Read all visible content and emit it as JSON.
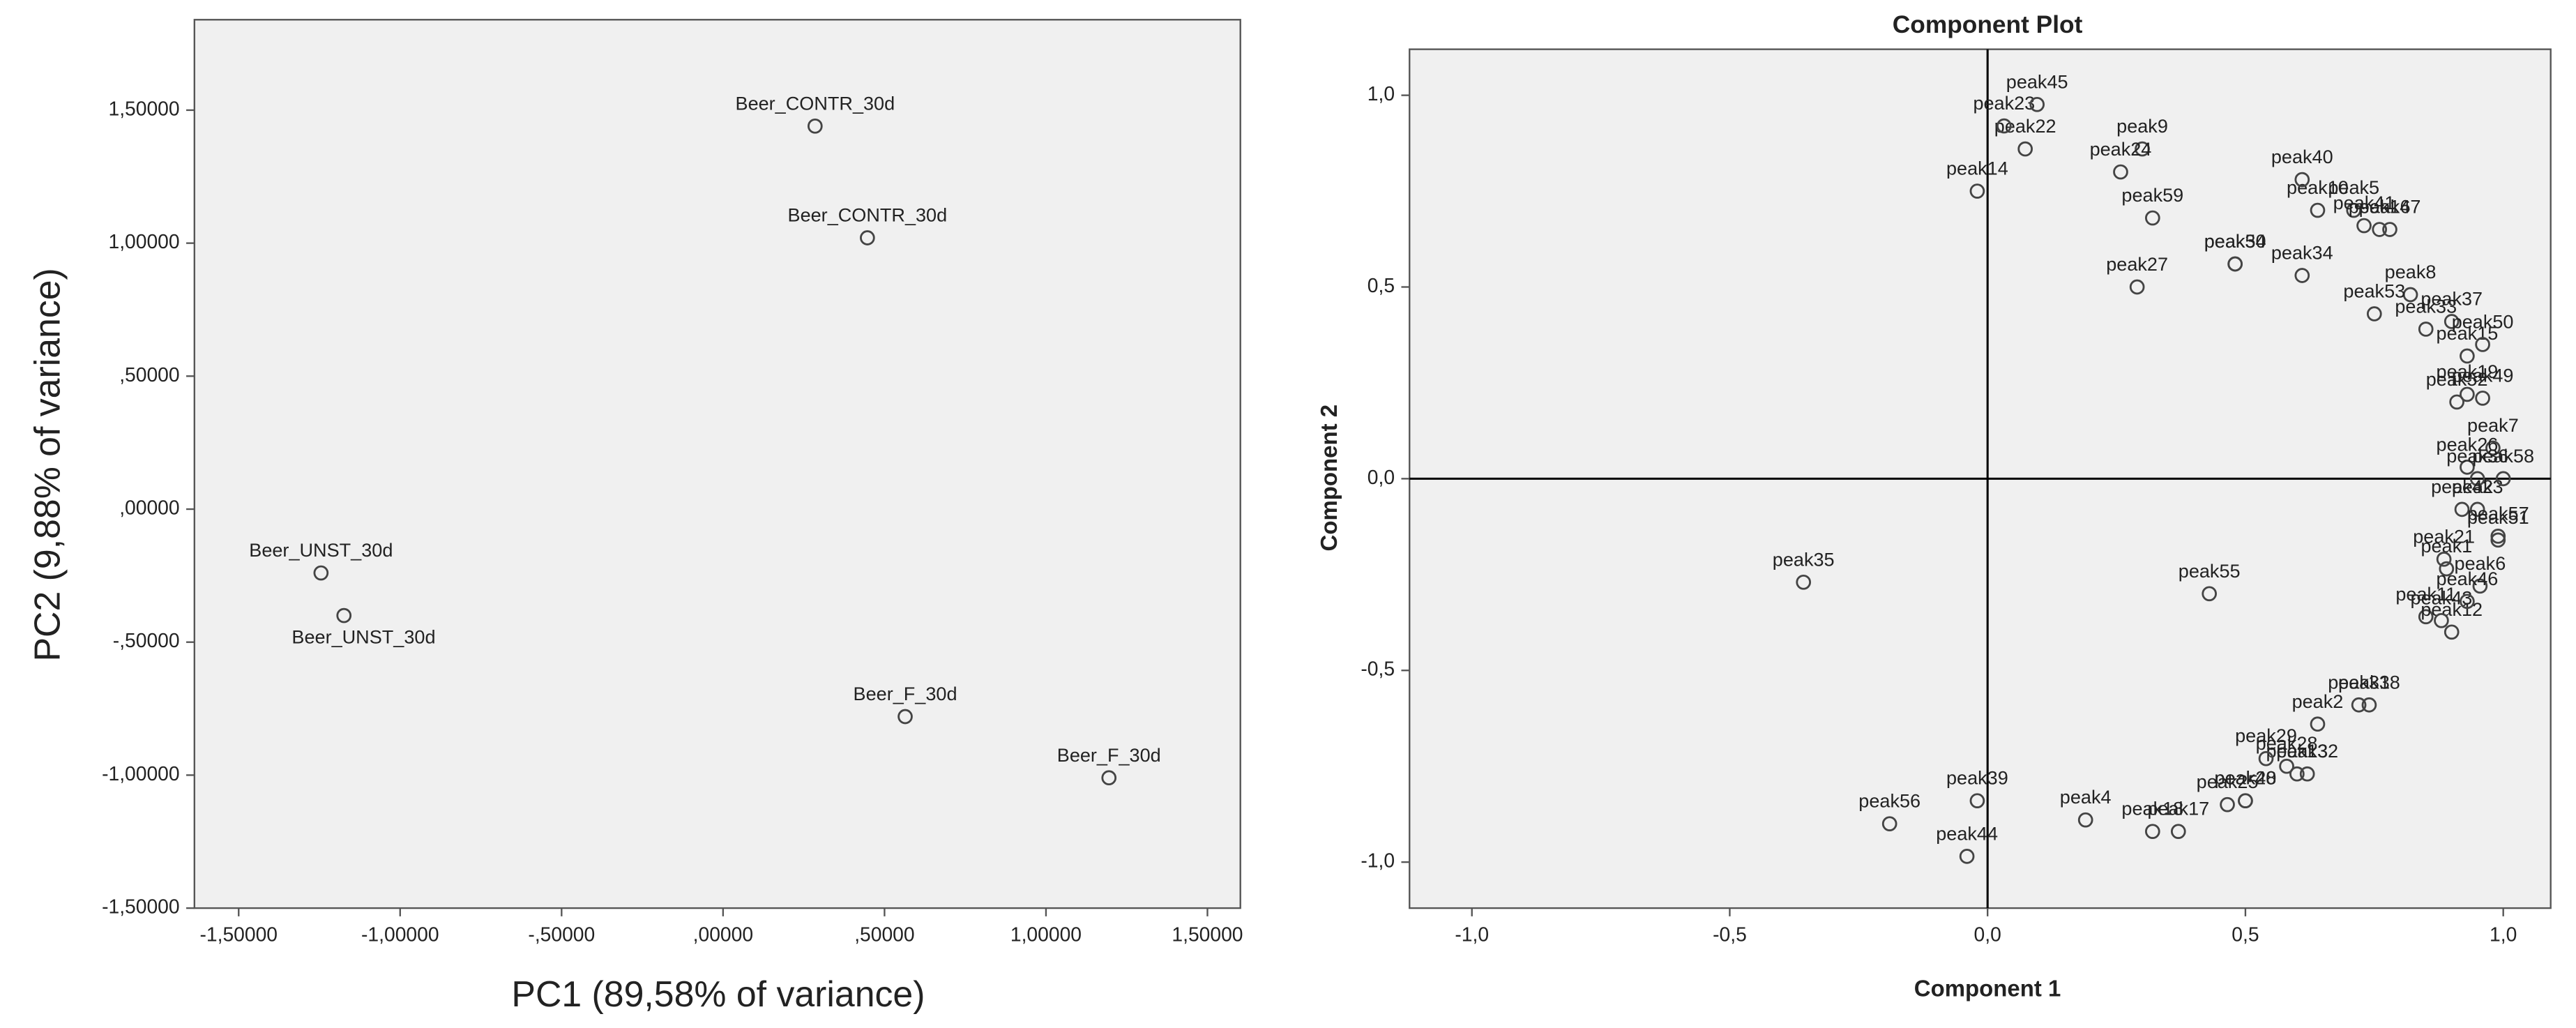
{
  "chart_data": [
    {
      "type": "scatter",
      "x_label": "PC1 (89,58% of variance)",
      "y_label": "PC2 (9,88% of variance)",
      "xlim": [
        -1.637,
        1.602
      ],
      "ylim": [
        -1.5,
        1.84
      ],
      "xticks": [
        {
          "value": -1.5,
          "label": "-1,50000"
        },
        {
          "value": -1,
          "label": "-1,00000"
        },
        {
          "value": -0.5,
          "label": "-,50000"
        },
        {
          "value": 0,
          "label": ",00000"
        },
        {
          "value": 0.5,
          "label": ",50000"
        },
        {
          "value": 1,
          "label": "1,00000"
        },
        {
          "value": 1.5,
          "label": "1,50000"
        }
      ],
      "yticks": [
        {
          "value": -1.5,
          "label": "-1,50000"
        },
        {
          "value": -1,
          "label": "-1,00000"
        },
        {
          "value": -0.5,
          "label": "-,50000"
        },
        {
          "value": 0,
          "label": ",00000"
        },
        {
          "value": 0.5,
          "label": ",50000"
        },
        {
          "value": 1,
          "label": "1,00000"
        },
        {
          "value": 1.5,
          "label": "1,50000"
        }
      ],
      "labels": [
        "Beer_CONTR_30d",
        "Beer_CONTR_30d",
        "Beer_UNST_30d",
        "Beer_UNST_30d",
        "Beer_F_30d",
        "Beer_F_30d"
      ],
      "x": [
        0.285,
        0.447,
        -1.245,
        -1.174,
        0.564,
        1.195
      ],
      "values": [
        1.44,
        1.02,
        -0.24,
        -0.4,
        -0.78,
        -1.01
      ],
      "color": "#444444",
      "zero_lines": false
    },
    {
      "type": "scatter",
      "title": "Component Plot",
      "x_label": "Component 1",
      "y_label": "Component 2",
      "xlim": [
        -1.121,
        1.092
      ],
      "ylim": [
        -1.12,
        1.12
      ],
      "xticks": [
        {
          "value": -1,
          "label": "-1,0"
        },
        {
          "value": -0.5,
          "label": "-0,5"
        },
        {
          "value": 0,
          "label": "0,0"
        },
        {
          "value": 0.5,
          "label": "0,5"
        },
        {
          "value": 1,
          "label": "1,0"
        }
      ],
      "yticks": [
        {
          "value": -1,
          "label": "-1,0"
        },
        {
          "value": -0.5,
          "label": "-0,5"
        },
        {
          "value": 0,
          "label": "0,0"
        },
        {
          "value": 0.5,
          "label": "0,5"
        },
        {
          "value": 1,
          "label": "1,0"
        }
      ],
      "labels": [
        "peak1",
        "peak2",
        "peak3",
        "peak4",
        "peak5",
        "peak6",
        "peak7",
        "peak8",
        "peak9",
        "peak10",
        "peak11",
        "peak12",
        "peak13",
        "peak14",
        "peak15",
        "peak16",
        "peak17",
        "peak18",
        "peak19",
        "peak20",
        "peak21",
        "peak22",
        "peak23",
        "peak24",
        "peak25",
        "peak26",
        "peak27",
        "peak28",
        "peak29",
        "peak30",
        "peak31",
        "peak32",
        "peak33",
        "peak34",
        "peak35",
        "peak36",
        "peak37",
        "peak38",
        "peak39",
        "peak40",
        "peak41",
        "peak42",
        "peak43",
        "peak44",
        "peak45",
        "peak46",
        "peak47",
        "peak48",
        "peak49",
        "peak50",
        "peak51",
        "peak52",
        "peak53",
        "peak54",
        "peak55",
        "peak56",
        "peak57",
        "peak58",
        "peak59"
      ],
      "x": [
        0.89,
        0.64,
        0.95,
        0.19,
        0.71,
        0.955,
        0.98,
        0.82,
        0.3,
        0.64,
        0.85,
        0.9,
        0.6,
        -0.02,
        0.93,
        0.76,
        0.37,
        0.32,
        0.93,
        0.5,
        0.885,
        0.073,
        0.032,
        0.258,
        0.465,
        0.93,
        0.29,
        0.58,
        0.54,
        0.48,
        0.72,
        0.62,
        0.85,
        0.61,
        -0.357,
        0.95,
        0.9,
        0.74,
        -0.02,
        0.61,
        0.73,
        0.92,
        0.88,
        -0.04,
        0.096,
        0.93,
        0.78,
        0.5,
        0.96,
        0.96,
        0.99,
        0.91,
        0.75,
        0.48,
        0.43,
        -0.19,
        0.99,
        1.0,
        0.32
      ],
      "values": [
        -0.235,
        -0.64,
        -0.08,
        -0.89,
        0.7,
        -0.28,
        0.08,
        0.48,
        0.86,
        0.7,
        -0.36,
        -0.4,
        -0.77,
        0.75,
        0.32,
        0.65,
        -0.92,
        -0.92,
        0.22,
        -0.84,
        -0.21,
        0.86,
        0.92,
        0.8,
        -0.85,
        0.03,
        0.5,
        -0.75,
        -0.73,
        0.56,
        -0.59,
        -0.77,
        0.39,
        0.53,
        -0.27,
        0.0,
        0.41,
        -0.59,
        -0.84,
        0.78,
        0.66,
        -0.08,
        -0.37,
        -0.985,
        0.976,
        -0.32,
        0.65,
        -0.84,
        0.21,
        0.35,
        -0.16,
        0.2,
        0.43,
        0.56,
        -0.3,
        -0.9,
        -0.15,
        0.0,
        0.68
      ],
      "color": "#444444",
      "zero_lines": true
    }
  ]
}
